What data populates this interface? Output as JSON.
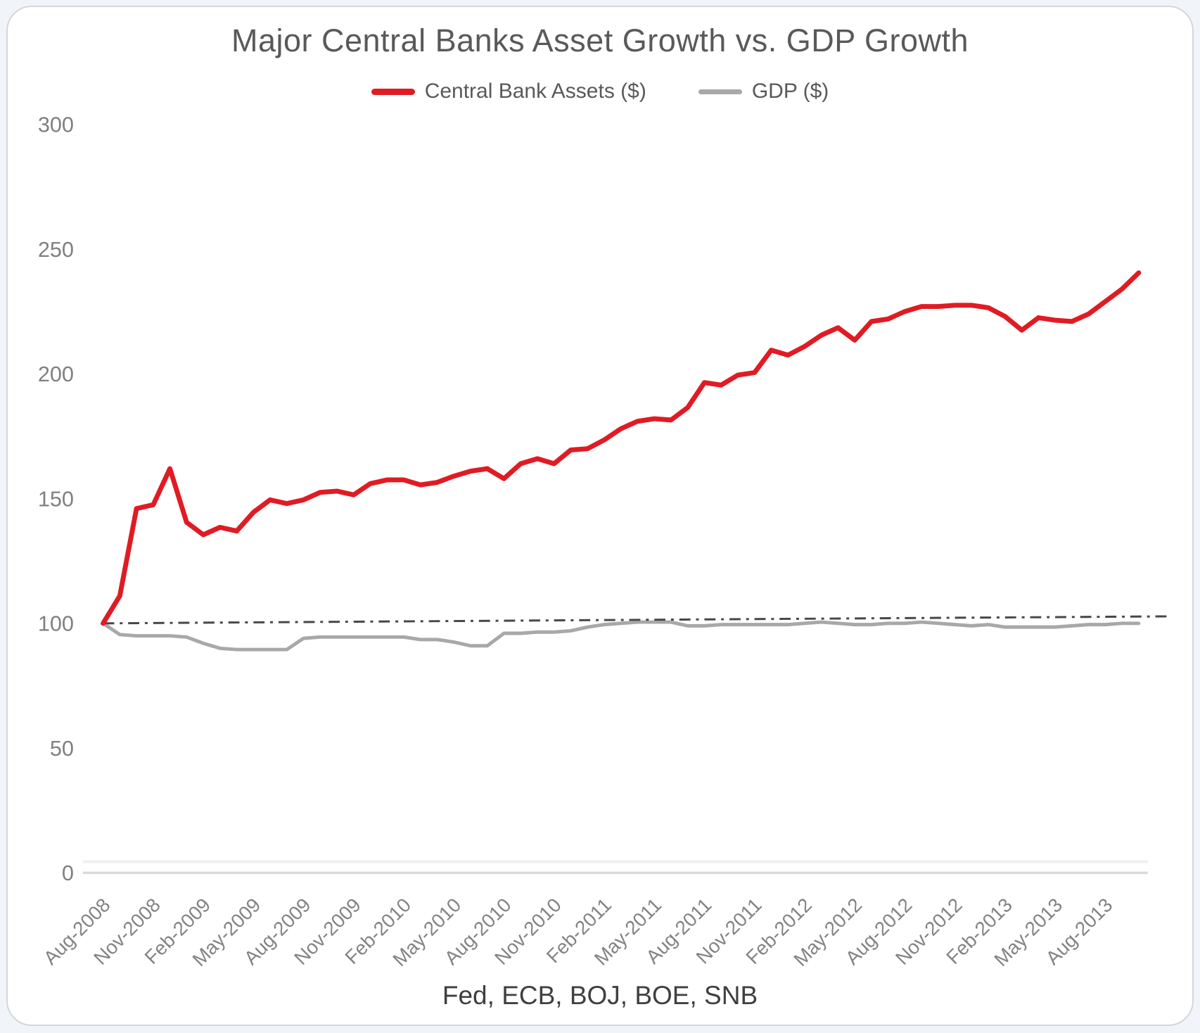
{
  "chart_data": {
    "type": "line",
    "title": "Major Central Banks Asset Growth vs. GDP Growth",
    "footnote": "Fed, ECB, BOJ, BOE, SNB",
    "xlabel": "",
    "ylabel": "",
    "ylim": [
      0,
      300
    ],
    "yticks": [
      0,
      50,
      100,
      150,
      200,
      250,
      300
    ],
    "grid": false,
    "legend_position": "top-center",
    "x_frequency": "monthly",
    "x_start": "Aug-2008",
    "x_end": "Oct-2013",
    "tick_step": 3,
    "x_tick_labels": [
      "Aug-2008",
      "Nov-2008",
      "Feb-2009",
      "May-2009",
      "Aug-2009",
      "Nov-2009",
      "Feb-2010",
      "May-2010",
      "Aug-2010",
      "Nov-2010",
      "Feb-2011",
      "May-2011",
      "Aug-2011",
      "Nov-2011",
      "Feb-2012",
      "May-2012",
      "Aug-2012",
      "Nov-2012",
      "Feb-2013",
      "May-2013",
      "Aug-2013"
    ],
    "series": [
      {
        "name": "Central Bank Assets ($)",
        "color": "#e01b24",
        "line_width": 7,
        "values": [
          100,
          111,
          146,
          147.5,
          162,
          140.5,
          135.5,
          138.5,
          137,
          144.5,
          149.5,
          148,
          149.5,
          152.5,
          153,
          151.5,
          156,
          157.5,
          157.5,
          155.5,
          156.5,
          159,
          161,
          162,
          158,
          164,
          166,
          164,
          169.5,
          170,
          173.5,
          178,
          181,
          182,
          181.5,
          186.5,
          196.5,
          195.5,
          199.5,
          200.5,
          209.5,
          207.5,
          211,
          215.5,
          218.5,
          213.5,
          221,
          222,
          225,
          227,
          227,
          227.5,
          227.5,
          226.5,
          223,
          217.5,
          222.5,
          221.5,
          221,
          224,
          229,
          234,
          240.5
        ]
      },
      {
        "name": "GDP ($)",
        "color": "#a8a8a8",
        "line_width": 5,
        "values": [
          100,
          95.5,
          95,
          95,
          95,
          94.5,
          92,
          90,
          89.5,
          89.5,
          89.5,
          89.5,
          94,
          94.5,
          94.5,
          94.5,
          94.5,
          94.5,
          94.5,
          93.5,
          93.5,
          92.5,
          91,
          91,
          96,
          96,
          96.5,
          96.5,
          97,
          98.5,
          99.5,
          100,
          100.5,
          100.5,
          100.5,
          99,
          99,
          99.5,
          99.5,
          99.5,
          99.5,
          99.5,
          100,
          100.5,
          100,
          99.5,
          99.5,
          100,
          100,
          100.5,
          100,
          99.5,
          99,
          99.5,
          98.5,
          98.5,
          98.5,
          98.5,
          99,
          99.5,
          99.5,
          100,
          100
        ]
      }
    ],
    "trendline": {
      "style": "dash-dot",
      "color": "#474747",
      "line_width": 3,
      "from": 100,
      "to": 102.8
    }
  }
}
